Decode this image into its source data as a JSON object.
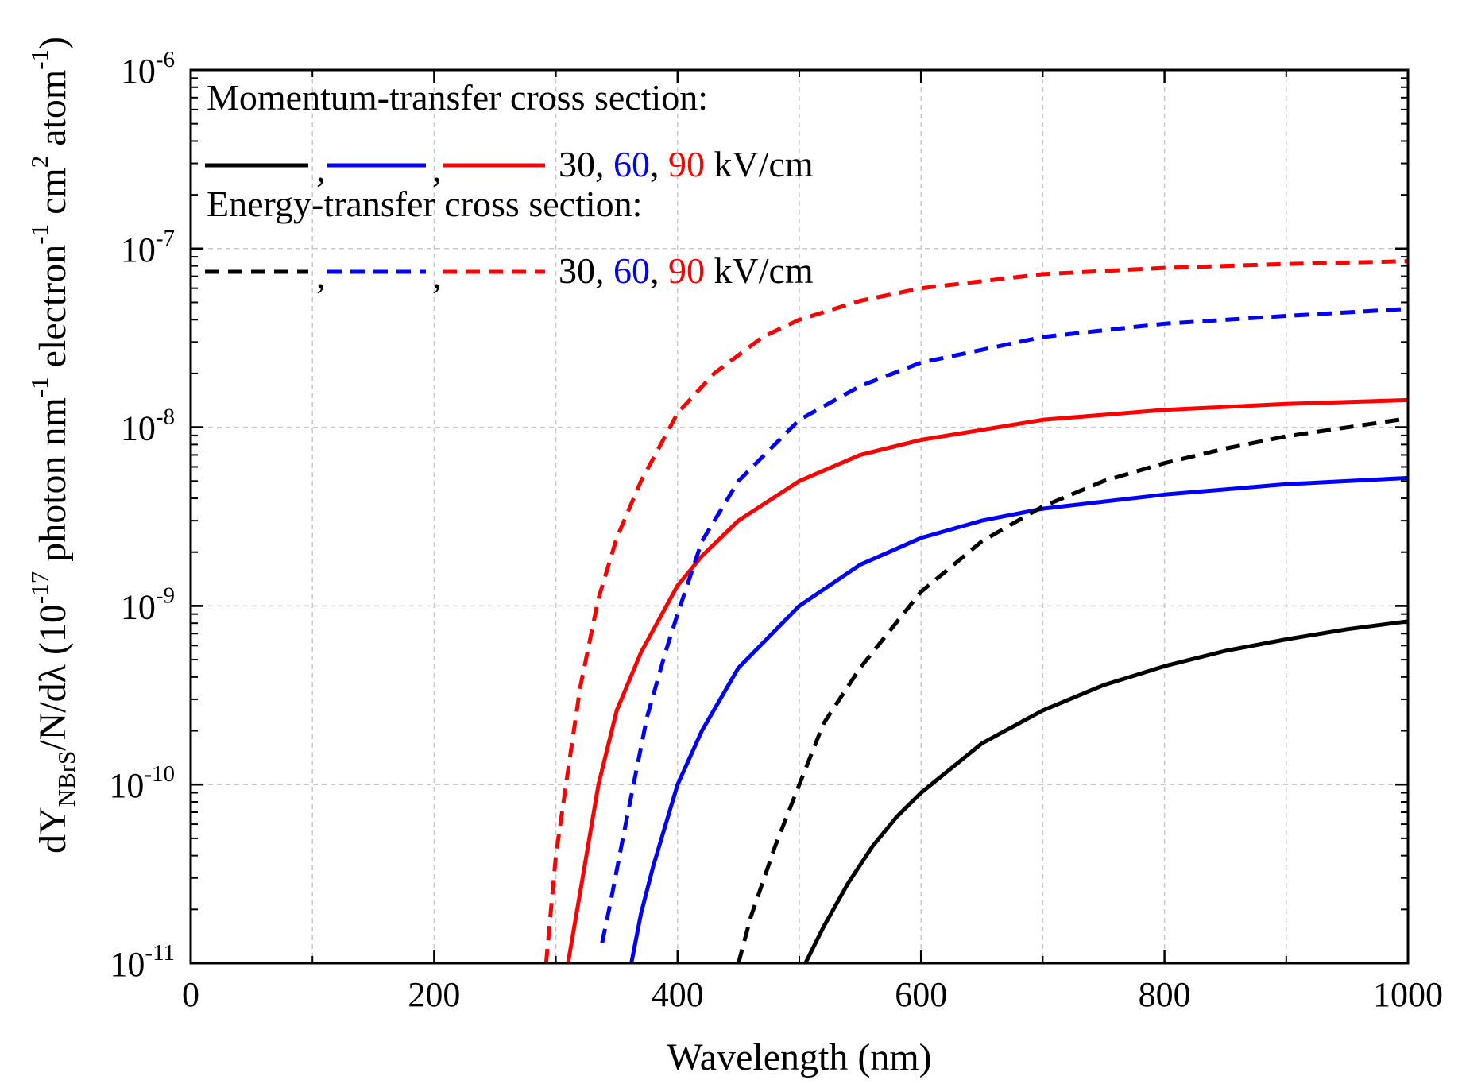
{
  "chart_data": {
    "type": "line",
    "xlabel": "Wavelength (nm)",
    "ylabel": {
      "parts": [
        "dY",
        "NBrS",
        "/N/dλ (10",
        "-17",
        " photon nm",
        "-1",
        " electron",
        "-1",
        " cm",
        "2",
        " atom",
        "-1",
        ")"
      ]
    },
    "xlim": [
      0,
      1000
    ],
    "ylim": [
      1e-11,
      1e-06
    ],
    "yscale": "log",
    "grid": true,
    "x_ticks": [
      {
        "value": 0,
        "label": "0"
      },
      {
        "value": 200,
        "label": "200"
      },
      {
        "value": 400,
        "label": "400"
      },
      {
        "value": 600,
        "label": "600"
      },
      {
        "value": 800,
        "label": "800"
      },
      {
        "value": 1000,
        "label": "1000"
      }
    ],
    "x_minor_ticks": [
      100,
      300,
      500,
      700,
      900
    ],
    "y_ticks": [
      {
        "value": 1e-06,
        "base": "10",
        "exp": "-6"
      },
      {
        "value": 1e-07,
        "base": "10",
        "exp": "-7"
      },
      {
        "value": 1e-08,
        "base": "10",
        "exp": "-8"
      },
      {
        "value": 1e-09,
        "base": "10",
        "exp": "-9"
      },
      {
        "value": 1e-10,
        "base": "10",
        "exp": "-10"
      },
      {
        "value": 1e-11,
        "base": "10",
        "exp": "-11"
      }
    ],
    "legend": {
      "placement": "top-left",
      "groups": [
        {
          "title": "Momentum-transfer cross section:",
          "dash": "solid",
          "separators": [
            ",",
            ","
          ],
          "fields": [
            {
              "text": "30",
              "color": "#000000"
            },
            {
              "text": "60",
              "color": "#0000ff"
            },
            {
              "text": "90",
              "color": "#ff0000"
            }
          ],
          "field_separators": [
            ", ",
            ", "
          ],
          "unit": " kV/cm"
        },
        {
          "title": "Energy-transfer cross section:",
          "dash": "dashed",
          "separators": [
            ",",
            ","
          ],
          "fields": [
            {
              "text": "30",
              "color": "#000000"
            },
            {
              "text": "60",
              "color": "#0000ff"
            },
            {
              "text": "90",
              "color": "#ff0000"
            }
          ],
          "field_separators": [
            ", ",
            ", "
          ],
          "unit": " kV/cm"
        }
      ]
    },
    "series": [
      {
        "name": "Momentum-transfer 30 kV/cm",
        "color": "#000000",
        "dash": "solid",
        "x": [
          505,
          520,
          540,
          560,
          580,
          600,
          650,
          700,
          750,
          800,
          850,
          900,
          950,
          1000
        ],
        "y": [
          1e-11,
          1.6e-11,
          2.8e-11,
          4.5e-11,
          6.6e-11,
          9e-11,
          1.7e-10,
          2.6e-10,
          3.6e-10,
          4.6e-10,
          5.6e-10,
          6.5e-10,
          7.4e-10,
          8.2e-10
        ]
      },
      {
        "name": "Momentum-transfer 60 kV/cm",
        "color": "#0000ff",
        "dash": "solid",
        "x": [
          362,
          370,
          380,
          400,
          420,
          450,
          500,
          550,
          600,
          650,
          700,
          800,
          900,
          1000
        ],
        "y": [
          1e-11,
          1.9e-11,
          3.5e-11,
          1e-10,
          2e-10,
          4.5e-10,
          1e-09,
          1.7e-09,
          2.4e-09,
          3e-09,
          3.5e-09,
          4.2e-09,
          4.8e-09,
          5.2e-09
        ]
      },
      {
        "name": "Momentum-transfer 90 kV/cm",
        "color": "#ff0000",
        "dash": "solid",
        "x": [
          310,
          320,
          335,
          350,
          370,
          400,
          420,
          450,
          500,
          550,
          600,
          700,
          800,
          900,
          1000
        ],
        "y": [
          1e-11,
          2.5e-11,
          1e-10,
          2.6e-10,
          5.5e-10,
          1.3e-09,
          1.9e-09,
          3e-09,
          5e-09,
          7e-09,
          8.5e-09,
          1.1e-08,
          1.25e-08,
          1.35e-08,
          1.42e-08
        ]
      },
      {
        "name": "Energy-transfer 30 kV/cm",
        "color": "#000000",
        "dash": "dashed",
        "x": [
          450,
          460,
          480,
          500,
          520,
          550,
          600,
          650,
          700,
          750,
          800,
          850,
          900,
          1000
        ],
        "y": [
          1e-11,
          1.8e-11,
          4.5e-11,
          1e-10,
          2.2e-10,
          4.5e-10,
          1.2e-09,
          2.3e-09,
          3.6e-09,
          5e-09,
          6.3e-09,
          7.6e-09,
          8.9e-09,
          1.12e-08
        ]
      },
      {
        "name": "Energy-transfer 60 kV/cm",
        "color": "#0000ff",
        "dash": "dashed",
        "x": [
          338,
          345,
          355,
          365,
          375,
          390,
          400,
          420,
          450,
          500,
          550,
          600,
          700,
          800,
          900,
          1000
        ],
        "y": [
          1.3e-11,
          2.2e-11,
          5e-11,
          1.1e-10,
          2.4e-10,
          5.5e-10,
          9e-10,
          2.3e-09,
          5e-09,
          1.1e-08,
          1.7e-08,
          2.3e-08,
          3.2e-08,
          3.8e-08,
          4.2e-08,
          4.6e-08
        ]
      },
      {
        "name": "Energy-transfer 90 kV/cm",
        "color": "#ff0000",
        "dash": "dashed",
        "x": [
          292,
          300,
          310,
          320,
          335,
          350,
          370,
          400,
          430,
          470,
          500,
          550,
          600,
          700,
          800,
          900,
          1000
        ],
        "y": [
          1e-11,
          4e-11,
          1.2e-10,
          3.5e-10,
          1.1e-09,
          2.4e-09,
          5e-09,
          1.2e-08,
          2e-08,
          3.2e-08,
          4e-08,
          5.1e-08,
          6e-08,
          7.2e-08,
          7.8e-08,
          8.2e-08,
          8.5e-08
        ]
      }
    ]
  }
}
